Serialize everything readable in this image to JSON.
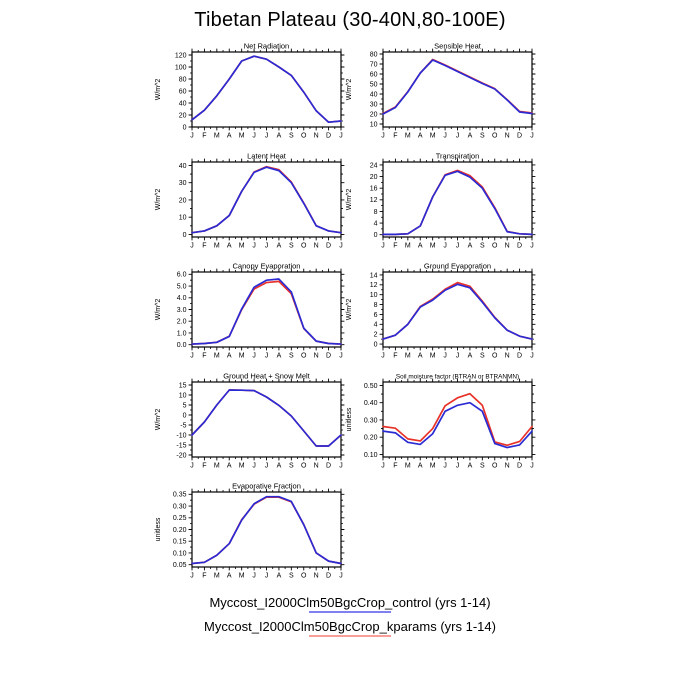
{
  "window": {
    "title": "Tibetan Plateau (30-40N,80-100E)"
  },
  "x_categories": [
    "J",
    "F",
    "M",
    "A",
    "M",
    "J",
    "J",
    "A",
    "S",
    "O",
    "N",
    "D",
    "J"
  ],
  "series_colors": {
    "control": "#2b2bd4",
    "kparams": "#e83229"
  },
  "legend": {
    "items": [
      {
        "label": "Myccost_I2000Clm50BgcCrop_control (yrs 1-14)",
        "line_color": "#8080f0"
      },
      {
        "label": "Myccost_I2000Clm50BgcCrop_kparams (yrs 1-14)",
        "line_color": "#f89f99"
      }
    ]
  },
  "chart_data": [
    {
      "type": "line",
      "title": "Net Radiation",
      "ylabel": "W/m^2",
      "ylim": [
        0,
        125
      ],
      "ytick_vals": [
        0,
        20,
        40,
        60,
        80,
        100,
        120
      ],
      "ytick_labels": [
        "0",
        "20",
        "40",
        "60",
        "80",
        "100",
        "120"
      ],
      "grid_pos": {
        "row": 0,
        "col": 0
      },
      "series": [
        {
          "name": "control",
          "values": [
            12,
            28,
            52,
            80,
            110,
            118,
            113,
            100,
            86,
            58,
            27,
            8,
            10
          ]
        },
        {
          "name": "kparams",
          "values": [
            12,
            28,
            52,
            80,
            110,
            118,
            113,
            100,
            86,
            58,
            27,
            8,
            10
          ]
        }
      ]
    },
    {
      "type": "line",
      "title": "Sensible Heat",
      "ylabel": "W/m^2",
      "ylim": [
        7,
        82
      ],
      "ytick_vals": [
        10,
        20,
        30,
        40,
        50,
        60,
        70,
        80
      ],
      "ytick_labels": [
        "10",
        "20",
        "30",
        "40",
        "50",
        "60",
        "70",
        "80"
      ],
      "grid_pos": {
        "row": 0,
        "col": 1
      },
      "series": [
        {
          "name": "control",
          "values": [
            20,
            26.5,
            42,
            61,
            74,
            68.5,
            62.5,
            56.5,
            50.5,
            45,
            34,
            22,
            20.5
          ]
        },
        {
          "name": "kparams",
          "values": [
            20.5,
            27,
            42.3,
            61,
            74.5,
            69,
            63,
            57,
            51,
            45.3,
            34.3,
            22.5,
            21
          ]
        }
      ]
    },
    {
      "type": "line",
      "title": "Latent Heat",
      "ylabel": "W/m^2",
      "ylim": [
        -1.5,
        42
      ],
      "ytick_vals": [
        0,
        10,
        20,
        30,
        40
      ],
      "ytick_labels": [
        "0",
        "10",
        "20",
        "30",
        "40"
      ],
      "grid_pos": {
        "row": 1,
        "col": 0
      },
      "series": [
        {
          "name": "control",
          "values": [
            1,
            2,
            5,
            11,
            25,
            36,
            39,
            37,
            30,
            18,
            5,
            2,
            1
          ]
        },
        {
          "name": "kparams",
          "values": [
            1,
            2,
            5,
            11,
            25,
            36.2,
            39.3,
            37.5,
            30.4,
            18.2,
            5.1,
            2,
            1
          ]
        }
      ]
    },
    {
      "type": "line",
      "title": "Transpiration",
      "ylabel": "W/m^2",
      "ylim": [
        -0.8,
        25
      ],
      "ytick_vals": [
        0,
        4,
        8,
        12,
        16,
        20,
        24
      ],
      "ytick_labels": [
        "0",
        "4",
        "8",
        "12",
        "16",
        "20",
        "24"
      ],
      "grid_pos": {
        "row": 1,
        "col": 1
      },
      "series": [
        {
          "name": "control",
          "values": [
            0.1,
            0.1,
            0.3,
            3,
            13,
            20.4,
            21.8,
            19.8,
            16,
            9,
            1,
            0.3,
            0.1
          ]
        },
        {
          "name": "kparams",
          "values": [
            0.1,
            0.1,
            0.3,
            3,
            13,
            20.6,
            22.1,
            20.3,
            16.4,
            9.3,
            1.1,
            0.3,
            0.1
          ]
        }
      ]
    },
    {
      "type": "line",
      "title": "Canopy Evaporation",
      "ylabel": "W/m^2",
      "ylim": [
        -0.2,
        6.2
      ],
      "ytick_vals": [
        0,
        1,
        2,
        3,
        4,
        5,
        6
      ],
      "ytick_labels": [
        "0.0",
        "1.0",
        "2.0",
        "3.0",
        "4.0",
        "5.0",
        "6.0"
      ],
      "grid_pos": {
        "row": 2,
        "col": 0
      },
      "series": [
        {
          "name": "control",
          "values": [
            0.05,
            0.1,
            0.2,
            0.7,
            3.05,
            4.9,
            5.5,
            5.6,
            4.5,
            1.4,
            0.3,
            0.1,
            0.05
          ]
        },
        {
          "name": "kparams",
          "values": [
            0.05,
            0.1,
            0.2,
            0.72,
            3.0,
            4.75,
            5.3,
            5.4,
            4.35,
            1.38,
            0.3,
            0.1,
            0.05
          ]
        }
      ]
    },
    {
      "type": "line",
      "title": "Ground Evaporation",
      "ylabel": "W/m^2",
      "ylim": [
        -0.6,
        14.6
      ],
      "ytick_vals": [
        0,
        2,
        4,
        6,
        8,
        10,
        12,
        14
      ],
      "ytick_labels": [
        "0",
        "2",
        "4",
        "6",
        "8",
        "10",
        "12",
        "14"
      ],
      "grid_pos": {
        "row": 2,
        "col": 1
      },
      "series": [
        {
          "name": "control",
          "values": [
            1.0,
            1.8,
            4.0,
            7.5,
            8.9,
            10.9,
            12.1,
            11.4,
            8.5,
            5.3,
            2.8,
            1.6,
            1.0
          ]
        },
        {
          "name": "kparams",
          "values": [
            1.0,
            1.8,
            4.0,
            7.6,
            9.1,
            11.1,
            12.45,
            11.7,
            8.7,
            5.4,
            2.8,
            1.6,
            1.0
          ]
        }
      ]
    },
    {
      "type": "line",
      "title": "Ground Heat + Snow Melt",
      "ylabel": "W/m^2",
      "ylim": [
        -21,
        16.5
      ],
      "ytick_vals": [
        -20,
        -15,
        -10,
        -5,
        0,
        5,
        10,
        15
      ],
      "ytick_labels": [
        "-20",
        "-15",
        "-10",
        "-5",
        "0",
        "5",
        "10",
        "15"
      ],
      "grid_pos": {
        "row": 3,
        "col": 0
      },
      "series": [
        {
          "name": "control",
          "values": [
            -10,
            -3.5,
            5,
            12.5,
            12.4,
            12.2,
            9,
            4.8,
            -0.5,
            -8,
            -15.5,
            -15.5,
            -10
          ]
        },
        {
          "name": "kparams",
          "values": [
            -10,
            -3.5,
            5,
            12.5,
            12.4,
            12.2,
            9,
            4.8,
            -0.5,
            -8,
            -15.5,
            -15.5,
            -10
          ]
        }
      ]
    },
    {
      "type": "line",
      "title": "Soil moisture factor (BTRAN or BTRANMN)",
      "ylabel": "unitless",
      "ylim": [
        0.085,
        0.52
      ],
      "ytick_vals": [
        0.1,
        0.2,
        0.3,
        0.4,
        0.5
      ],
      "ytick_labels": [
        "0.10",
        "0.20",
        "0.30",
        "0.40",
        "0.50"
      ],
      "grid_pos": {
        "row": 3,
        "col": 1
      },
      "series": [
        {
          "name": "control",
          "values": [
            0.235,
            0.225,
            0.17,
            0.158,
            0.22,
            0.35,
            0.385,
            0.4,
            0.35,
            0.163,
            0.14,
            0.155,
            0.235
          ]
        },
        {
          "name": "kparams",
          "values": [
            0.262,
            0.252,
            0.19,
            0.178,
            0.25,
            0.382,
            0.428,
            0.452,
            0.385,
            0.172,
            0.153,
            0.175,
            0.262
          ]
        }
      ]
    },
    {
      "type": "line",
      "title": "Evaporative Fraction",
      "ylabel": "unitless",
      "ylim": [
        0.04,
        0.36
      ],
      "ytick_vals": [
        0.05,
        0.1,
        0.15,
        0.2,
        0.25,
        0.3,
        0.35
      ],
      "ytick_labels": [
        "0.05",
        "0.10",
        "0.15",
        "0.20",
        "0.25",
        "0.30",
        "0.35"
      ],
      "grid_pos": {
        "row": 4,
        "col": 0
      },
      "series": [
        {
          "name": "control",
          "values": [
            0.055,
            0.06,
            0.09,
            0.14,
            0.24,
            0.31,
            0.34,
            0.34,
            0.32,
            0.22,
            0.1,
            0.065,
            0.055
          ]
        },
        {
          "name": "kparams",
          "values": [
            0.055,
            0.06,
            0.09,
            0.14,
            0.242,
            0.308,
            0.338,
            0.338,
            0.318,
            0.221,
            0.1,
            0.065,
            0.055
          ]
        }
      ]
    }
  ]
}
